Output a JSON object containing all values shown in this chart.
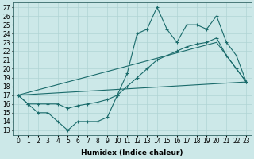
{
  "xlabel": "Humidex (Indice chaleur)",
  "x_ticks": [
    0,
    1,
    2,
    3,
    4,
    5,
    6,
    7,
    8,
    9,
    10,
    11,
    12,
    13,
    14,
    15,
    16,
    17,
    18,
    19,
    20,
    21,
    22,
    23
  ],
  "ylim": [
    12.5,
    27.5
  ],
  "xlim": [
    -0.5,
    23.5
  ],
  "y_ticks": [
    13,
    14,
    15,
    16,
    17,
    18,
    19,
    20,
    21,
    22,
    23,
    24,
    25,
    26,
    27
  ],
  "bg_color": "#cce8e8",
  "grid_color": "#b0d4d4",
  "line_color": "#1a6b6b",
  "series1_x": [
    0,
    1,
    2,
    3,
    4,
    5,
    6,
    7,
    8,
    9,
    10,
    11,
    12,
    13,
    14,
    15,
    16,
    17,
    18,
    19,
    20,
    21,
    22,
    23
  ],
  "series1_y": [
    17,
    16,
    15,
    15,
    14,
    13,
    14,
    14,
    14,
    14.5,
    17,
    19.5,
    24,
    24.5,
    27,
    24.5,
    23,
    25,
    25,
    24.5,
    26,
    23,
    21.5,
    18.5
  ],
  "series2_x": [
    0,
    1,
    2,
    3,
    4,
    5,
    6,
    7,
    8,
    9,
    10,
    11,
    12,
    13,
    14,
    15,
    16,
    17,
    18,
    19,
    20,
    21,
    22,
    23
  ],
  "series2_y": [
    17,
    16,
    16,
    16,
    16,
    15.5,
    15.8,
    16.0,
    16.2,
    16.5,
    17,
    18,
    19,
    20,
    21,
    21.5,
    22,
    22.5,
    22.8,
    23,
    23.5,
    21.5,
    20,
    18.5
  ],
  "series3_x": [
    0,
    23
  ],
  "series3_y": [
    17,
    18.5
  ],
  "series4_x": [
    0,
    20,
    23
  ],
  "series4_y": [
    17,
    23,
    18.5
  ],
  "tick_fontsize": 5.5,
  "xlabel_fontsize": 6.5
}
